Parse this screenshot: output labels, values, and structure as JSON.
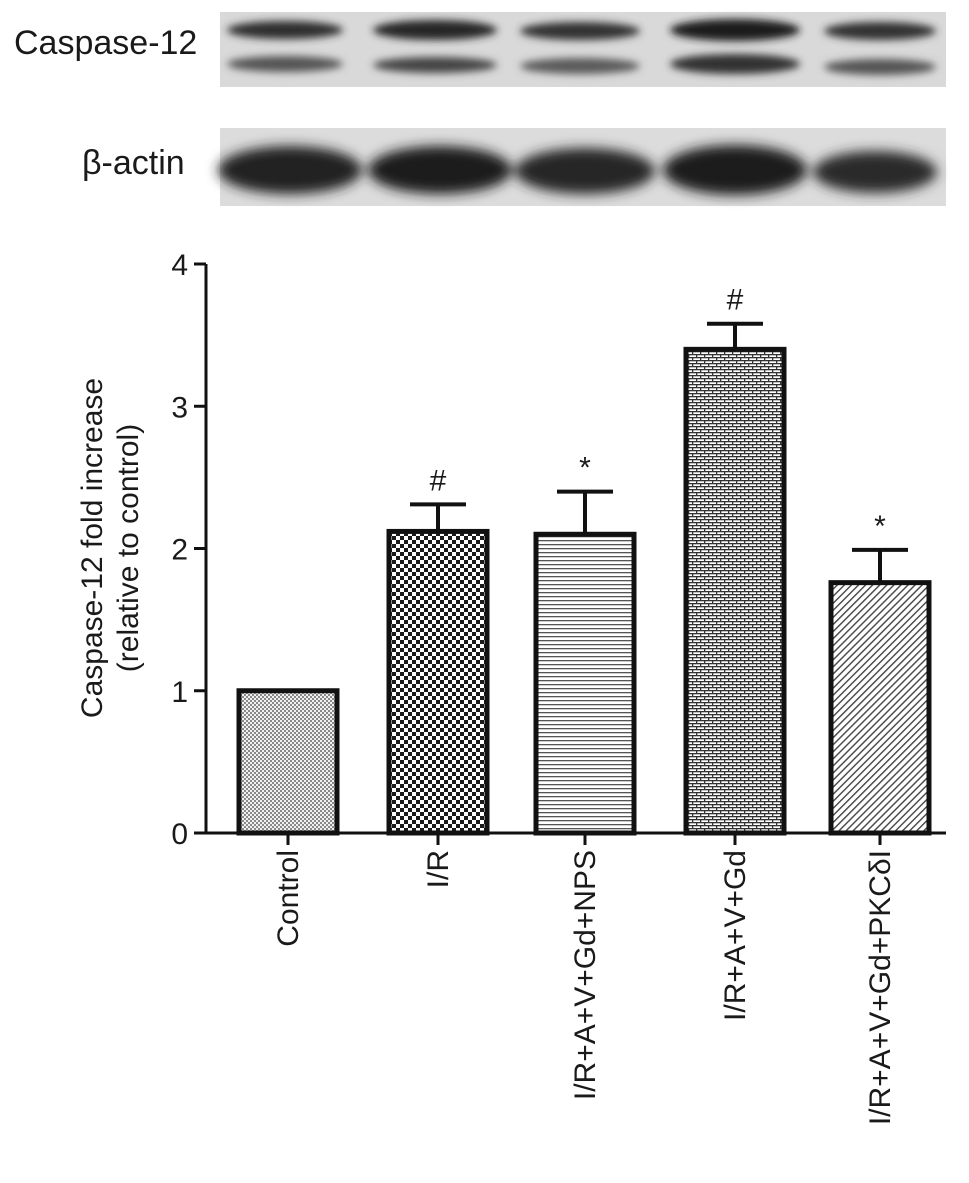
{
  "blot": {
    "rows": [
      {
        "label": "Caspase-12",
        "bands": 2
      },
      {
        "label": "β-actin",
        "bands": 1
      }
    ]
  },
  "chart_data": {
    "type": "bar",
    "categories": [
      "Control",
      "I/R",
      "I/R+A+V+Gd+NPS",
      "I/R+A+V+Gd",
      "I/R+A+V+Gd+PKCδI"
    ],
    "values": [
      1.0,
      2.12,
      2.1,
      3.4,
      1.76
    ],
    "error_upper": [
      0.0,
      0.19,
      0.3,
      0.18,
      0.23
    ],
    "significance": [
      "",
      "#",
      "*",
      "#",
      "*"
    ],
    "patterns": [
      "fine-check",
      "checker",
      "horizontal-lines",
      "brick",
      "diagonal-lines"
    ],
    "title": "",
    "xlabel": "",
    "ylabel_line1": "Caspase-12 fold increase",
    "ylabel_line2": "(relative to control)",
    "ylim": [
      0,
      4
    ],
    "yticks": [
      0,
      1,
      2,
      3,
      4
    ],
    "grid": false,
    "bar_edge_color": "#111111"
  }
}
